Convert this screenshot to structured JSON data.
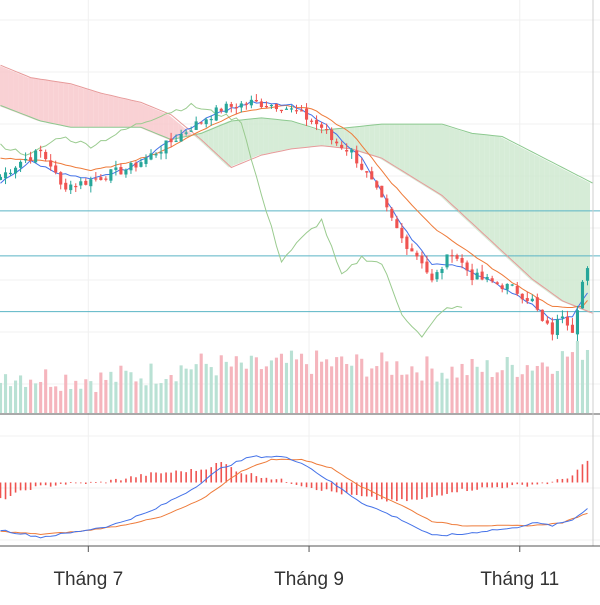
{
  "chart_data": {
    "type": "candlestick",
    "title": "",
    "xlabel": "",
    "ylabel": "",
    "grid": true,
    "x_ticks": [
      "Tháng 7",
      "Tháng 9",
      "Tháng 11"
    ],
    "x_tick_sessions": [
      18,
      62,
      104
    ],
    "session_count": 118,
    "price_range": [
      0,
      100
    ],
    "volume_range": [
      0,
      80
    ],
    "macd_range": [
      -40,
      40
    ],
    "horizontal_levels": [
      {
        "value": 61,
        "color": "#5ab4c5"
      },
      {
        "value": 46.5,
        "color": "#5ab4c5"
      },
      {
        "value": 28.5,
        "color": "#5ab4c5"
      }
    ],
    "colors": {
      "up": "#26a69a",
      "down": "#ef5350",
      "volume_up": "#b9e1d4",
      "volume_down": "#f5b5bd",
      "cloud_bear": "#f8c9cc",
      "cloud_bull": "#cfe9d0",
      "conversion_line": "#4472e8",
      "base_line": "#ee7b3a",
      "span_a": "#8cc98f",
      "span_b": "#e79a9a",
      "lagging_span": "#9acb8f",
      "macd_line": "#4472e8",
      "signal_line": "#ee7b3a",
      "histogram": "#ef5350"
    },
    "anchors": {
      "close": [
        [
          0,
          72
        ],
        [
          4,
          77
        ],
        [
          8,
          80
        ],
        [
          10,
          76
        ],
        [
          12,
          69
        ],
        [
          16,
          70
        ],
        [
          20,
          72
        ],
        [
          26,
          75
        ],
        [
          32,
          81
        ],
        [
          38,
          88
        ],
        [
          44,
          94
        ],
        [
          50,
          96
        ],
        [
          56,
          95
        ],
        [
          60,
          92
        ],
        [
          64,
          88
        ],
        [
          66,
          84
        ],
        [
          70,
          80
        ],
        [
          74,
          70
        ],
        [
          78,
          58
        ],
        [
          80,
          52
        ],
        [
          84,
          45
        ],
        [
          86,
          38
        ],
        [
          90,
          48
        ],
        [
          94,
          40
        ],
        [
          98,
          38
        ],
        [
          102,
          36
        ],
        [
          106,
          32
        ],
        [
          108,
          25
        ],
        [
          110,
          22
        ],
        [
          112,
          28
        ],
        [
          114,
          23
        ],
        [
          116,
          38
        ],
        [
          118,
          45
        ]
      ],
      "conversion": [
        [
          0,
          70
        ],
        [
          6,
          77
        ],
        [
          12,
          73
        ],
        [
          18,
          71
        ],
        [
          26,
          75
        ],
        [
          34,
          84
        ],
        [
          42,
          92
        ],
        [
          50,
          96
        ],
        [
          58,
          95
        ],
        [
          64,
          90
        ],
        [
          72,
          78
        ],
        [
          80,
          56
        ],
        [
          86,
          44
        ],
        [
          92,
          43
        ],
        [
          98,
          38
        ],
        [
          104,
          33
        ],
        [
          110,
          26
        ],
        [
          114,
          27
        ],
        [
          118,
          37
        ]
      ],
      "base": [
        [
          0,
          78
        ],
        [
          10,
          77
        ],
        [
          18,
          74
        ],
        [
          24,
          76
        ],
        [
          32,
          80
        ],
        [
          40,
          87
        ],
        [
          48,
          93
        ],
        [
          56,
          95
        ],
        [
          62,
          94
        ],
        [
          70,
          86
        ],
        [
          78,
          70
        ],
        [
          86,
          56
        ],
        [
          94,
          47
        ],
        [
          102,
          38
        ],
        [
          110,
          30
        ],
        [
          116,
          30
        ],
        [
          118,
          34
        ]
      ],
      "span_a": [
        [
          0,
          95
        ],
        [
          8,
          90
        ],
        [
          14,
          88
        ],
        [
          20,
          88
        ],
        [
          28,
          88
        ],
        [
          34,
          84
        ],
        [
          40,
          86
        ],
        [
          46,
          90
        ],
        [
          52,
          91
        ],
        [
          58,
          90
        ],
        [
          64,
          87
        ],
        [
          70,
          88
        ],
        [
          76,
          89
        ],
        [
          82,
          89
        ],
        [
          88,
          89
        ],
        [
          94,
          86
        ],
        [
          100,
          85
        ],
        [
          106,
          80
        ],
        [
          112,
          75
        ],
        [
          118,
          70
        ]
      ],
      "span_b": [
        [
          0,
          108
        ],
        [
          6,
          104
        ],
        [
          14,
          102
        ],
        [
          20,
          99
        ],
        [
          28,
          96
        ],
        [
          34,
          92
        ],
        [
          40,
          84
        ],
        [
          46,
          75
        ],
        [
          52,
          79
        ],
        [
          58,
          81
        ],
        [
          64,
          82
        ],
        [
          70,
          81
        ],
        [
          76,
          78
        ],
        [
          82,
          72
        ],
        [
          88,
          66
        ],
        [
          94,
          57
        ],
        [
          100,
          48
        ],
        [
          106,
          39
        ],
        [
          112,
          32
        ],
        [
          118,
          28
        ]
      ],
      "lagging": [
        [
          0,
          82
        ],
        [
          6,
          79
        ],
        [
          12,
          85
        ],
        [
          18,
          82
        ],
        [
          26,
          88
        ],
        [
          32,
          92
        ],
        [
          38,
          95
        ],
        [
          44,
          92
        ],
        [
          48,
          90
        ],
        [
          52,
          66
        ],
        [
          56,
          45
        ],
        [
          60,
          52
        ],
        [
          64,
          58
        ],
        [
          68,
          40
        ],
        [
          72,
          46
        ],
        [
          76,
          44
        ],
        [
          80,
          28
        ],
        [
          84,
          20
        ],
        [
          88,
          29
        ],
        [
          92,
          30
        ]
      ],
      "macd": [
        [
          0,
          -33
        ],
        [
          8,
          -38
        ],
        [
          14,
          -35
        ],
        [
          22,
          -30
        ],
        [
          30,
          -20
        ],
        [
          38,
          -5
        ],
        [
          44,
          10
        ],
        [
          50,
          18
        ],
        [
          56,
          18
        ],
        [
          60,
          14
        ],
        [
          66,
          0
        ],
        [
          72,
          -14
        ],
        [
          80,
          -26
        ],
        [
          86,
          -37
        ],
        [
          92,
          -36
        ],
        [
          98,
          -33
        ],
        [
          102,
          -32
        ],
        [
          106,
          -28
        ],
        [
          110,
          -30
        ],
        [
          114,
          -26
        ],
        [
          118,
          -15
        ]
      ],
      "signal": [
        [
          0,
          -34
        ],
        [
          8,
          -36
        ],
        [
          16,
          -34
        ],
        [
          24,
          -30
        ],
        [
          32,
          -24
        ],
        [
          40,
          -12
        ],
        [
          48,
          8
        ],
        [
          54,
          16
        ],
        [
          60,
          16
        ],
        [
          66,
          10
        ],
        [
          72,
          -3
        ],
        [
          80,
          -16
        ],
        [
          86,
          -27
        ],
        [
          92,
          -30
        ],
        [
          100,
          -30
        ],
        [
          106,
          -30
        ],
        [
          112,
          -28
        ],
        [
          118,
          -20
        ]
      ],
      "volume": [
        [
          0,
          42
        ],
        [
          10,
          38
        ],
        [
          20,
          36
        ],
        [
          30,
          42
        ],
        [
          40,
          52
        ],
        [
          50,
          48
        ],
        [
          60,
          54
        ],
        [
          70,
          52
        ],
        [
          80,
          50
        ],
        [
          90,
          45
        ],
        [
          100,
          48
        ],
        [
          110,
          55
        ],
        [
          118,
          72
        ]
      ],
      "histogram": [
        [
          0,
          -12
        ],
        [
          6,
          -4
        ],
        [
          12,
          -1
        ],
        [
          20,
          0
        ],
        [
          30,
          6
        ],
        [
          40,
          9
        ],
        [
          44,
          14
        ],
        [
          48,
          7
        ],
        [
          54,
          3
        ],
        [
          58,
          0
        ],
        [
          64,
          -5
        ],
        [
          72,
          -10
        ],
        [
          78,
          -13
        ],
        [
          84,
          -12
        ],
        [
          90,
          -6
        ],
        [
          96,
          -4
        ],
        [
          104,
          -2
        ],
        [
          110,
          0
        ],
        [
          114,
          5
        ],
        [
          118,
          18
        ]
      ]
    }
  }
}
